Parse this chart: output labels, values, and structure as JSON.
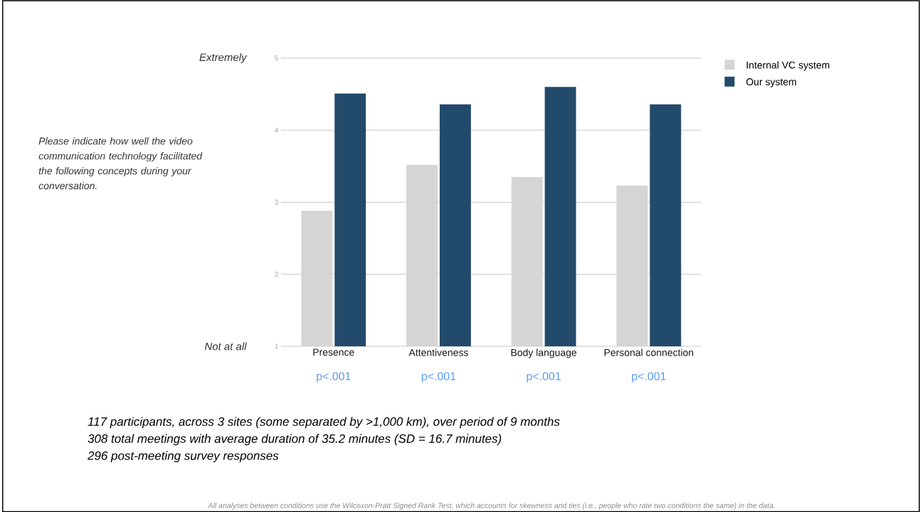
{
  "chart_data": {
    "type": "bar",
    "categories": [
      "Presence",
      "Attentiveness",
      "Body language",
      "Personal connection"
    ],
    "series": [
      {
        "name": "Internal VC system",
        "color": "#d5d5d5",
        "values": [
          2.88,
          3.52,
          3.35,
          3.23
        ]
      },
      {
        "name": "Our system",
        "color": "#224a6b",
        "values": [
          4.51,
          4.36,
          4.6,
          4.36
        ]
      }
    ],
    "ylim": [
      1,
      5
    ],
    "yticks": [
      1,
      2,
      3,
      4,
      5
    ],
    "grid": "y",
    "legend": "top right",
    "annotations": [
      "Extremely",
      "Not at all",
      "p<.001",
      "p<.001",
      "p<.001",
      "p<.001",
      "Please indicate how well the video communication technology facilitated the following concepts during your conversation.",
      "117 participants, across 3 sites (some separated by >1,000 km), over period of 9 months",
      "308 total meetings with average duration of 35.2 minutes (SD = 16.7 minutes)",
      "296 post-meeting survey responses",
      "All analyses between conditions use the Wilcoxon-Pratt Signed Rank Test, which accounts for skewness and ties (i.e., people who rate two conditions the same) in the data."
    ]
  }
}
